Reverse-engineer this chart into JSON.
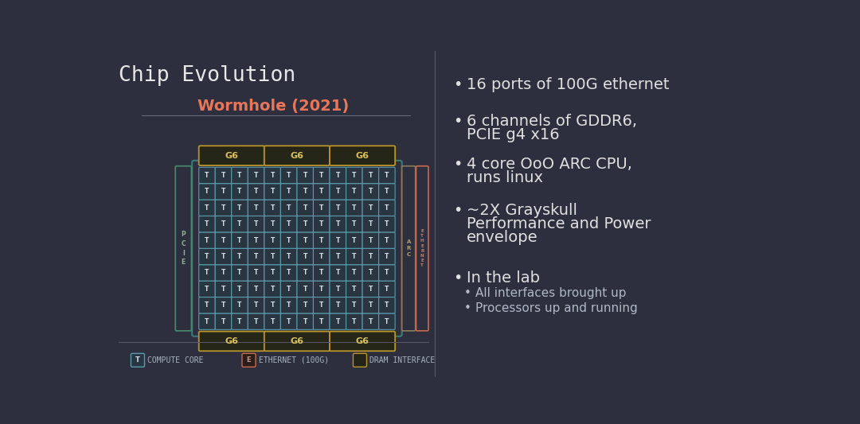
{
  "bg_color": "#2d2f3e",
  "title": "Chip Evolution",
  "chip_title": "Wormhole (2021)",
  "chip_title_color": "#e8765a",
  "title_color": "#e8e8e8",
  "text_color": "#e0e0e0",
  "grid_rows": 10,
  "grid_cols": 12,
  "compute_border": "#5a9aaa",
  "compute_face": "#2a3542",
  "ethernet_color": "#c96a4a",
  "dram_color": "#b8952a",
  "pcie_color": "#4a8a6a",
  "arc_color": "#8a7a5a",
  "teal_border": "#3a7a7a",
  "bullet_points": [
    [
      "16 ports of 100G ethernet"
    ],
    [
      "6 channels of GDDR6,",
      "PCIE g4 x16"
    ],
    [
      "4 core OoO ARC CPU,",
      "runs linux"
    ],
    [
      "~2X Grayskull",
      "Performance and Power",
      "envelope"
    ],
    [
      "In the lab"
    ]
  ],
  "sub_bullets": [
    "All interfaces brought up",
    "Processors up and running"
  ]
}
